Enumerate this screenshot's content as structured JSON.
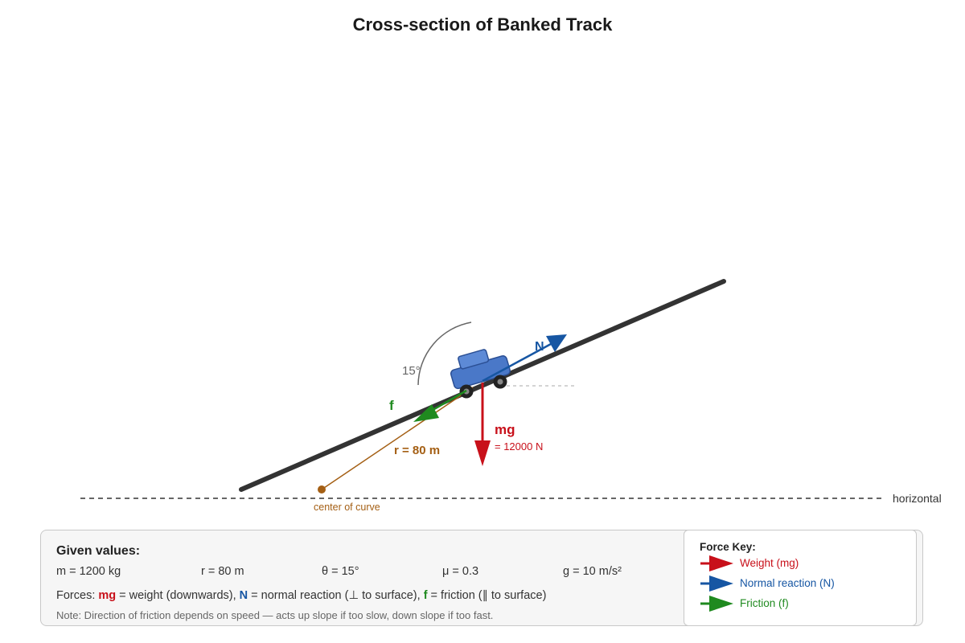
{
  "title": "Cross-section of Banked Track",
  "colors": {
    "weight": "#c8101a",
    "normal": "#1656a3",
    "friction": "#1f8a1f",
    "radius": "#a45f14",
    "track": "#333333",
    "car": "#4a78c8"
  },
  "diagram": {
    "angle_label": "15°",
    "normal_label": "N",
    "friction_label": "f",
    "weight_label": "mg",
    "weight_value": "= 12000 N",
    "radius_label": "r = 80 m",
    "center_label": "center of curve",
    "horizontal_label": "horizontal"
  },
  "given": {
    "title": "Given values:",
    "values": [
      "m = 1200 kg",
      "r = 80 m",
      "θ = 15°",
      "μ = 0.3",
      "g = 10 m/s²"
    ],
    "forces_prefix": "Forces: ",
    "mg_symbol": "mg",
    "mg_desc": " = weight (downwards), ",
    "n_symbol": "N",
    "n_desc": " = normal reaction (⊥ to surface), ",
    "f_symbol": "f",
    "f_desc": " = friction (∥ to surface)",
    "note": "Note: Direction of friction depends on speed — acts up slope if too slow, down slope if too fast."
  },
  "force_key": {
    "title": "Force Key:",
    "items": [
      {
        "label": "Weight (mg)",
        "color_key": "weight"
      },
      {
        "label": "Normal reaction (N)",
        "color_key": "normal"
      },
      {
        "label": "Friction (f)",
        "color_key": "friction"
      }
    ]
  }
}
